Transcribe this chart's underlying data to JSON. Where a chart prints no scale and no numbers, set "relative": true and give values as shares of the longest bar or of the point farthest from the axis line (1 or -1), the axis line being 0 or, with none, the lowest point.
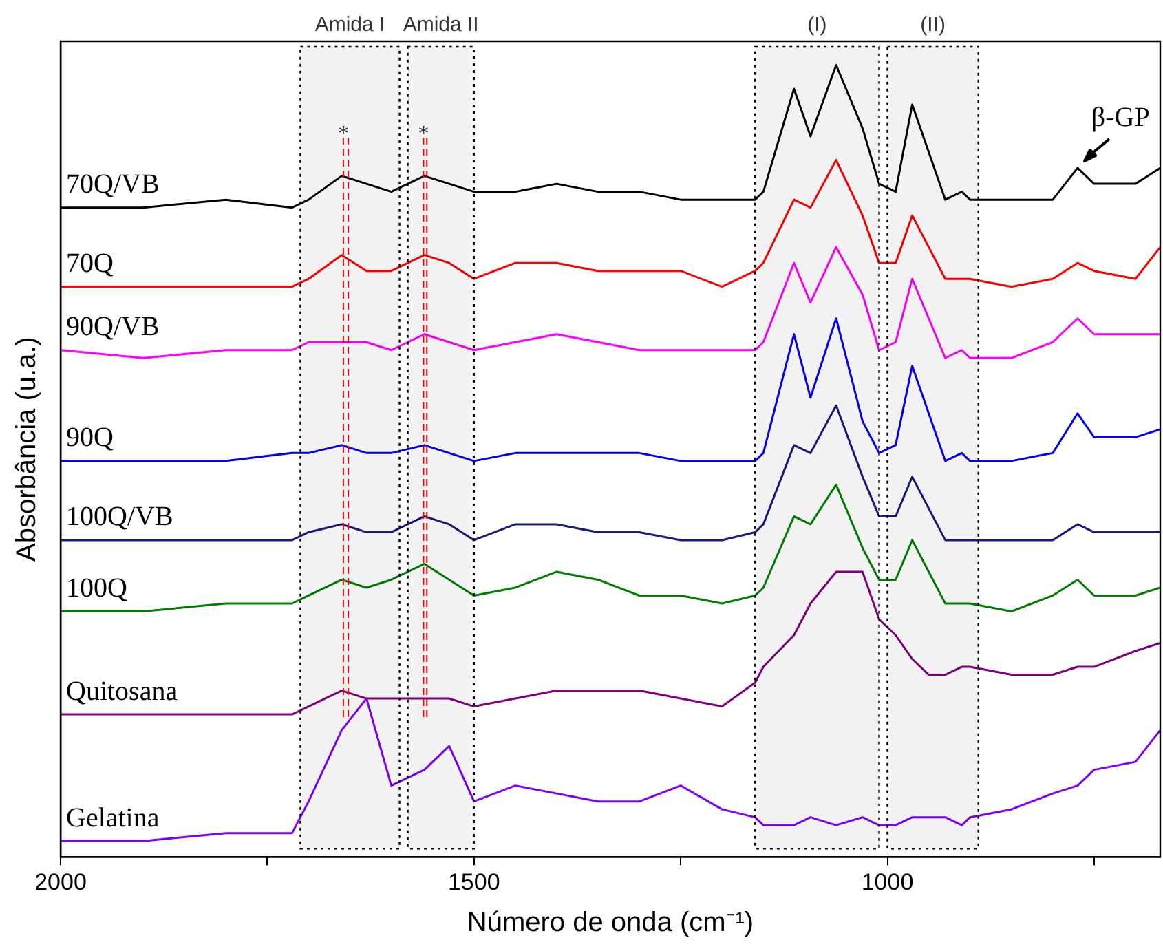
{
  "chart_data": {
    "type": "line",
    "relative": true,
    "xlabel": "Número de onda (cm⁻¹)",
    "ylabel": "Absorbância (u.a.)",
    "xlim": [
      2000,
      670
    ],
    "xticks": [
      2000,
      {
        "value": 1750,
        "label": null
      },
      1500,
      {
        "value": 1250,
        "label": null
      },
      1000,
      {
        "value": 750,
        "label": null
      }
    ],
    "grid": false,
    "legend": false,
    "marker": "none",
    "line_style": "solid",
    "x": [
      2000,
      1900,
      1800,
      1720,
      1700,
      1660,
      1630,
      1600,
      1560,
      1530,
      1500,
      1450,
      1400,
      1350,
      1300,
      1250,
      1200,
      1160,
      1150,
      1113,
      1093,
      1062,
      1030,
      1010,
      990,
      970,
      950,
      930,
      910,
      900,
      850,
      800,
      770,
      750,
      700,
      670
    ],
    "series": [
      {
        "name": "70Q/VB",
        "color": "#000000",
        "values": [
          0.82,
          0.82,
          0.83,
          0.82,
          0.83,
          0.86,
          0.85,
          0.84,
          0.86,
          0.85,
          0.84,
          0.84,
          0.85,
          0.84,
          0.84,
          0.83,
          0.83,
          0.83,
          0.84,
          0.97,
          0.91,
          1.0,
          0.92,
          0.85,
          0.84,
          0.95,
          0.89,
          0.83,
          0.84,
          0.83,
          0.83,
          0.83,
          0.87,
          0.85,
          0.85,
          0.87
        ]
      },
      {
        "name": "70Q",
        "color": "#ff0000",
        "values": [
          0.72,
          0.72,
          0.72,
          0.72,
          0.73,
          0.76,
          0.74,
          0.74,
          0.76,
          0.75,
          0.73,
          0.75,
          0.75,
          0.74,
          0.74,
          0.74,
          0.72,
          0.74,
          0.75,
          0.83,
          0.82,
          0.88,
          0.81,
          0.75,
          0.75,
          0.81,
          0.77,
          0.73,
          0.73,
          0.73,
          0.72,
          0.73,
          0.75,
          0.74,
          0.73,
          0.77
        ]
      },
      {
        "name": "90Q/VB",
        "color": "#ff00ff",
        "values": [
          0.64,
          0.63,
          0.64,
          0.64,
          0.65,
          0.65,
          0.65,
          0.64,
          0.66,
          0.65,
          0.64,
          0.65,
          0.66,
          0.65,
          0.64,
          0.64,
          0.64,
          0.64,
          0.65,
          0.75,
          0.7,
          0.77,
          0.71,
          0.64,
          0.65,
          0.73,
          0.68,
          0.63,
          0.64,
          0.63,
          0.63,
          0.65,
          0.68,
          0.66,
          0.66,
          0.66
        ]
      },
      {
        "name": "90Q",
        "color": "#0000ff",
        "values": [
          0.5,
          0.5,
          0.5,
          0.51,
          0.51,
          0.52,
          0.51,
          0.51,
          0.52,
          0.51,
          0.5,
          0.51,
          0.51,
          0.51,
          0.51,
          0.5,
          0.5,
          0.5,
          0.51,
          0.66,
          0.58,
          0.68,
          0.55,
          0.51,
          0.52,
          0.62,
          0.56,
          0.5,
          0.51,
          0.5,
          0.5,
          0.51,
          0.56,
          0.53,
          0.53,
          0.54
        ]
      },
      {
        "name": "100Q/VB",
        "color": "#1a1a80",
        "values": [
          0.4,
          0.4,
          0.4,
          0.4,
          0.41,
          0.42,
          0.41,
          0.41,
          0.43,
          0.42,
          0.4,
          0.42,
          0.42,
          0.41,
          0.41,
          0.4,
          0.4,
          0.41,
          0.42,
          0.52,
          0.51,
          0.57,
          0.48,
          0.43,
          0.43,
          0.48,
          0.44,
          0.4,
          0.4,
          0.4,
          0.4,
          0.4,
          0.42,
          0.41,
          0.41,
          0.41
        ]
      },
      {
        "name": "100Q",
        "color": "#008000",
        "values": [
          0.31,
          0.31,
          0.32,
          0.32,
          0.33,
          0.35,
          0.34,
          0.35,
          0.37,
          0.35,
          0.33,
          0.34,
          0.36,
          0.35,
          0.33,
          0.33,
          0.32,
          0.33,
          0.34,
          0.43,
          0.42,
          0.47,
          0.39,
          0.35,
          0.35,
          0.4,
          0.36,
          0.32,
          0.32,
          0.32,
          0.31,
          0.33,
          0.35,
          0.33,
          0.33,
          0.34
        ]
      },
      {
        "name": "Quitosana",
        "color": "#800080",
        "values": [
          0.18,
          0.18,
          0.18,
          0.18,
          0.19,
          0.21,
          0.2,
          0.2,
          0.2,
          0.2,
          0.19,
          0.2,
          0.21,
          0.21,
          0.21,
          0.2,
          0.19,
          0.22,
          0.24,
          0.28,
          0.32,
          0.36,
          0.36,
          0.3,
          0.28,
          0.25,
          0.23,
          0.23,
          0.24,
          0.24,
          0.23,
          0.23,
          0.24,
          0.24,
          0.26,
          0.27
        ]
      },
      {
        "name": "Gelatina",
        "color": "#8000ff",
        "values": [
          0.02,
          0.02,
          0.03,
          0.03,
          0.07,
          0.16,
          0.2,
          0.09,
          0.11,
          0.14,
          0.07,
          0.09,
          0.08,
          0.07,
          0.07,
          0.09,
          0.06,
          0.05,
          0.04,
          0.04,
          0.05,
          0.04,
          0.05,
          0.04,
          0.04,
          0.05,
          0.05,
          0.05,
          0.04,
          0.05,
          0.06,
          0.08,
          0.09,
          0.11,
          0.12,
          0.16
        ]
      }
    ],
    "bands": [
      {
        "axis": "x",
        "from": 1710,
        "to": 1590,
        "label": "Amida I",
        "color": "#000000"
      },
      {
        "axis": "x",
        "from": 1580,
        "to": 1500,
        "label": "Amida II",
        "color": "#000000"
      },
      {
        "axis": "x",
        "from": 1160,
        "to": 1010,
        "label": "(I)",
        "color": "#000000"
      },
      {
        "axis": "x",
        "from": 1000,
        "to": 890,
        "label": "(II)",
        "color": "#000000"
      }
    ],
    "ref_lines": [
      {
        "axis": "x",
        "value": 1658,
        "label": "*",
        "color": "#ff0000",
        "line_style": "dashed"
      },
      {
        "axis": "x",
        "value": 1652,
        "label": null,
        "color": "#ff0000",
        "line_style": "dashed"
      },
      {
        "axis": "x",
        "value": 1561,
        "label": "*",
        "color": "#ff0000",
        "line_style": "dashed"
      },
      {
        "axis": "x",
        "value": 1557,
        "label": null,
        "color": "#ff0000",
        "line_style": "dashed"
      }
    ],
    "annotations": [
      {
        "text": "β-GP",
        "x": 770,
        "y": 0.87
      }
    ]
  }
}
